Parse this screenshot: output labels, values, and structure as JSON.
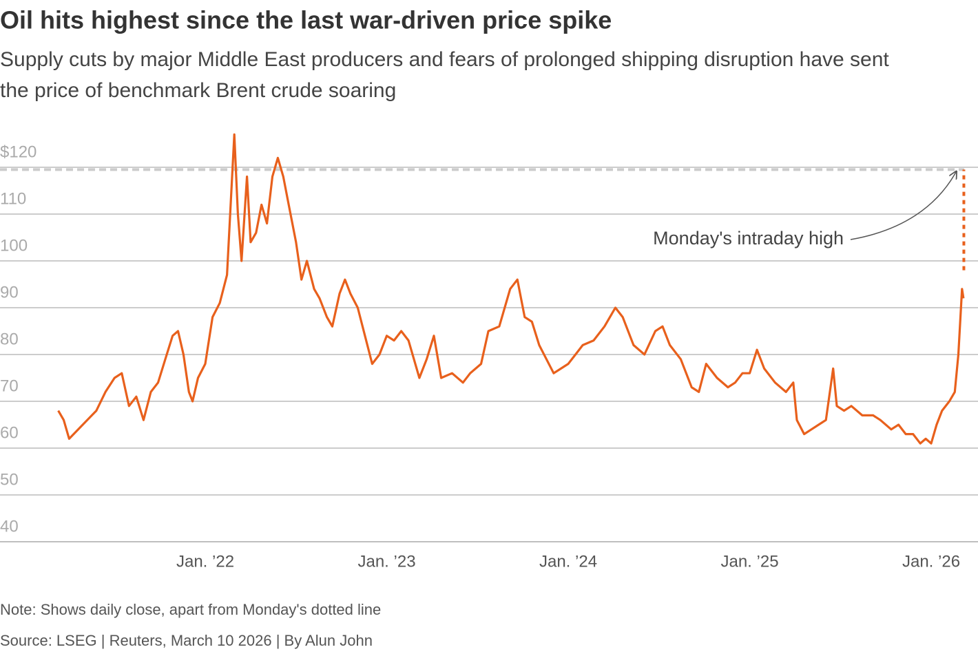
{
  "chart_data": {
    "type": "line",
    "title": "Oil hits highest since the last war-driven price spike",
    "subtitle_lines": [
      "Supply cuts by major Middle East producers and fears of prolonged shipping disruption have sent",
      "the price of benchmark Brent crude soaring"
    ],
    "note": "Note: Shows daily close, apart from Monday's dotted line",
    "source": "Source: LSEG | Reuters, March 10 2026 | By Alun John",
    "annotation": "Monday's intraday high",
    "color": "#e8601c",
    "grid": true,
    "xlim": [
      2020.869,
      2026.258
    ],
    "ylim": [
      40,
      130
    ],
    "yticks": [
      {
        "value": 120,
        "label": "$120"
      },
      110,
      100,
      90,
      80,
      70,
      60,
      50,
      40
    ],
    "xticks": [
      {
        "value": 2022,
        "label": "Jan. ’22"
      },
      {
        "value": 2023,
        "label": "Jan. ’23"
      },
      {
        "value": 2024,
        "label": "Jan. ’24"
      },
      {
        "value": 2025,
        "label": "Jan. ’25"
      },
      {
        "value": 2026,
        "label": "Jan. ’26"
      }
    ],
    "intraday": {
      "x": 2026.18,
      "low": 98,
      "high": 119.5
    },
    "x": [
      2021.19,
      2021.22,
      2021.25,
      2021.3,
      2021.35,
      2021.4,
      2021.45,
      2021.5,
      2021.54,
      2021.58,
      2021.62,
      2021.66,
      2021.7,
      2021.74,
      2021.78,
      2021.82,
      2021.85,
      2021.88,
      2021.91,
      2021.93,
      2021.96,
      2022.0,
      2022.04,
      2022.08,
      2022.12,
      2022.16,
      2022.18,
      2022.2,
      2022.23,
      2022.25,
      2022.28,
      2022.31,
      2022.34,
      2022.37,
      2022.4,
      2022.43,
      2022.46,
      2022.5,
      2022.53,
      2022.56,
      2022.6,
      2022.63,
      2022.67,
      2022.7,
      2022.74,
      2022.77,
      2022.8,
      2022.84,
      2022.88,
      2022.92,
      2022.96,
      2023.0,
      2023.04,
      2023.08,
      2023.12,
      2023.18,
      2023.22,
      2023.26,
      2023.3,
      2023.36,
      2023.42,
      2023.46,
      2023.52,
      2023.56,
      2023.62,
      2023.68,
      2023.72,
      2023.76,
      2023.8,
      2023.84,
      2023.88,
      2023.92,
      2023.96,
      2024.0,
      2024.04,
      2024.08,
      2024.14,
      2024.2,
      2024.26,
      2024.3,
      2024.36,
      2024.42,
      2024.48,
      2024.52,
      2024.56,
      2024.62,
      2024.68,
      2024.72,
      2024.76,
      2024.82,
      2024.88,
      2024.92,
      2024.96,
      2025.0,
      2025.04,
      2025.08,
      2025.14,
      2025.2,
      2025.24,
      2025.26,
      2025.3,
      2025.34,
      2025.38,
      2025.42,
      2025.46,
      2025.48,
      2025.52,
      2025.56,
      2025.62,
      2025.68,
      2025.72,
      2025.78,
      2025.82,
      2025.86,
      2025.9,
      2025.94,
      2025.97,
      2026.0,
      2026.03,
      2026.06,
      2026.1,
      2026.13,
      2026.15,
      2026.17,
      2026.178
    ],
    "values": [
      68,
      66,
      62,
      64,
      66,
      68,
      72,
      75,
      76,
      69,
      71,
      66,
      72,
      74,
      79,
      84,
      85,
      80,
      72,
      70,
      75,
      78,
      88,
      91,
      97,
      127,
      110,
      100,
      118,
      104,
      106,
      112,
      108,
      118,
      122,
      118,
      112,
      104,
      96,
      100,
      94,
      92,
      88,
      86,
      93,
      96,
      93,
      90,
      84,
      78,
      80,
      84,
      83,
      85,
      83,
      75,
      79,
      84,
      75,
      76,
      74,
      76,
      78,
      85,
      86,
      94,
      96,
      88,
      87,
      82,
      79,
      76,
      77,
      78,
      80,
      82,
      83,
      86,
      90,
      88,
      82,
      80,
      85,
      86,
      82,
      79,
      73,
      72,
      78,
      75,
      73,
      74,
      76,
      76,
      81,
      77,
      74,
      72,
      74,
      66,
      63,
      64,
      65,
      66,
      77,
      69,
      68,
      69,
      67,
      67,
      66,
      64,
      65,
      63,
      63,
      61,
      62,
      61,
      65,
      68,
      70,
      72,
      80,
      94,
      92
    ]
  }
}
